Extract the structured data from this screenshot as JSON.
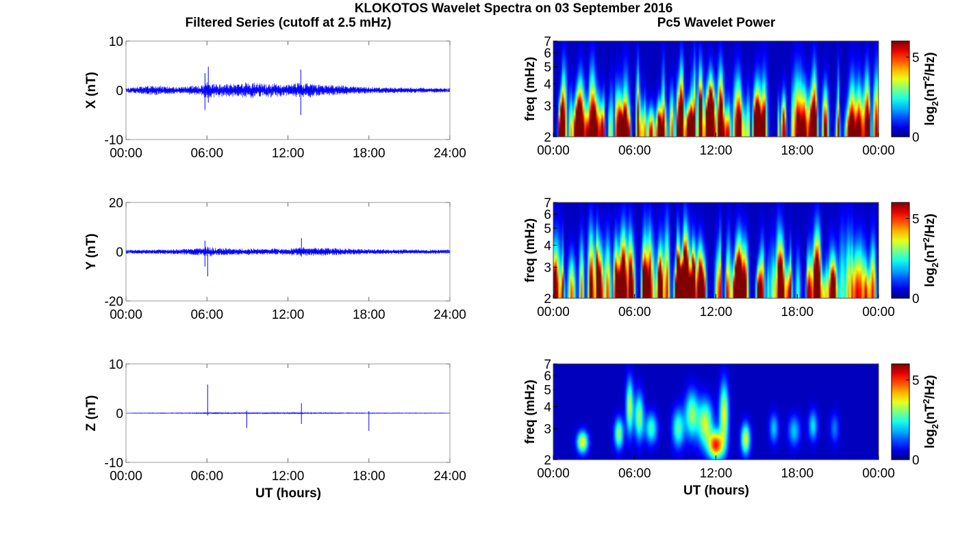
{
  "figure": {
    "title": "KLOKOTOS Wavelet Spectra on 03 September 2016",
    "left_column_title": "Filtered Series (cutoff at 2.5 mHz)",
    "right_column_title": "Pc5 Wavelet Power",
    "left_xlabel": "UT (hours)",
    "right_xlabel": "UT (hours)"
  },
  "chart_data": [
    {
      "type": "line",
      "panel": "filtered-x",
      "title": "",
      "xlabel": "",
      "ylabel": "X (nT)",
      "series_color": "#0000ff",
      "x_range_hours": [
        0,
        24
      ],
      "ylim": [
        -10,
        10
      ],
      "xticks": [
        "00:00",
        "06:00",
        "12:00",
        "18:00",
        "24:00"
      ],
      "yticks": [
        "10",
        "0",
        "-10"
      ],
      "grid": false,
      "base_amplitude": 0.5,
      "envelope": [
        [
          0,
          0.5
        ],
        [
          2,
          0.9
        ],
        [
          4,
          0.6
        ],
        [
          5.5,
          1.0
        ],
        [
          6,
          1.5
        ],
        [
          7,
          1.2
        ],
        [
          8,
          1.2
        ],
        [
          9,
          1.5
        ],
        [
          10,
          1.3
        ],
        [
          11,
          1.3
        ],
        [
          12,
          1.1
        ],
        [
          13,
          1.4
        ],
        [
          15,
          1.0
        ],
        [
          18,
          0.6
        ],
        [
          24,
          0.4
        ]
      ],
      "spikes": [
        {
          "x": 5.85,
          "min": -4.0,
          "max": 3.5
        },
        {
          "x": 6.1,
          "min": -2.5,
          "max": 4.8
        },
        {
          "x": 12.95,
          "min": -5.0,
          "max": 4.2
        }
      ]
    },
    {
      "type": "line",
      "panel": "filtered-y",
      "title": "",
      "xlabel": "",
      "ylabel": "Y (nT)",
      "series_color": "#0000ff",
      "x_range_hours": [
        0,
        24
      ],
      "ylim": [
        -20,
        20
      ],
      "xticks": [
        "00:00",
        "06:00",
        "12:00",
        "18:00",
        "24:00"
      ],
      "yticks": [
        "20",
        "0",
        "-20"
      ],
      "grid": false,
      "base_amplitude": 0.6,
      "envelope": [
        [
          0,
          0.6
        ],
        [
          4,
          0.8
        ],
        [
          5.5,
          1.2
        ],
        [
          6,
          1.5
        ],
        [
          8,
          1.0
        ],
        [
          12,
          1.0
        ],
        [
          13,
          1.4
        ],
        [
          18,
          0.8
        ],
        [
          24,
          0.6
        ]
      ],
      "spikes": [
        {
          "x": 5.85,
          "min": -6.0,
          "max": 4.5
        },
        {
          "x": 6.05,
          "min": -10.0,
          "max": 2.0
        },
        {
          "x": 13.0,
          "min": -2.0,
          "max": 5.5
        }
      ]
    },
    {
      "type": "line",
      "panel": "filtered-z",
      "title": "",
      "xlabel": "UT (hours)",
      "ylabel": "Z (nT)",
      "series_color": "#0000ff",
      "x_range_hours": [
        0,
        24
      ],
      "ylim": [
        -10,
        10
      ],
      "xticks": [
        "00:00",
        "06:00",
        "12:00",
        "18:00",
        "24:00"
      ],
      "yticks": [
        "10",
        "0",
        "-10"
      ],
      "grid": false,
      "base_amplitude": 0.15,
      "envelope": [
        [
          0,
          0.15
        ],
        [
          5,
          0.25
        ],
        [
          6,
          0.4
        ],
        [
          9,
          0.35
        ],
        [
          13,
          0.4
        ],
        [
          16,
          0.25
        ],
        [
          24,
          0.15
        ]
      ],
      "spikes": [
        {
          "x": 6.05,
          "min": -0.5,
          "max": 5.8
        },
        {
          "x": 8.95,
          "min": -3.0,
          "max": 0.5
        },
        {
          "x": 13.0,
          "min": -2.2,
          "max": 2.0
        },
        {
          "x": 18.0,
          "min": -3.6,
          "max": 0.4
        }
      ]
    },
    {
      "type": "heatmap",
      "panel": "wavelet-x",
      "title": "",
      "xlabel": "",
      "ylabel": "freq (mHz)",
      "x_range_hours": [
        0,
        24
      ],
      "ylim_mhz": [
        2,
        7
      ],
      "log_y": true,
      "xticks": [
        "00:00",
        "06:00",
        "12:00",
        "18:00",
        "00:00"
      ],
      "yticks": [
        "7",
        "6",
        "5",
        "4",
        "3",
        "2"
      ],
      "colorbar": {
        "label_base": "log",
        "label_sub": "2",
        "label_unit_open": "(nT",
        "label_sup": "2",
        "label_unit_close": "/Hz)",
        "ticks": [
          "5",
          "0"
        ],
        "range": [
          0,
          6
        ],
        "colormap": "jet"
      },
      "intensity_profile": [
        [
          0,
          0.85
        ],
        [
          3,
          0.95
        ],
        [
          5,
          0.8
        ],
        [
          7,
          0.95
        ],
        [
          9,
          1.0
        ],
        [
          12,
          1.0
        ],
        [
          14,
          0.75
        ],
        [
          18,
          0.7
        ],
        [
          21,
          0.7
        ],
        [
          24,
          0.6
        ]
      ],
      "freq_reach": 0.55
    },
    {
      "type": "heatmap",
      "panel": "wavelet-y",
      "title": "",
      "xlabel": "",
      "ylabel": "freq (mHz)",
      "x_range_hours": [
        0,
        24
      ],
      "ylim_mhz": [
        2,
        7
      ],
      "log_y": true,
      "xticks": [
        "00:00",
        "06:00",
        "12:00",
        "18:00",
        "00:00"
      ],
      "yticks": [
        "7",
        "6",
        "5",
        "4",
        "3",
        "2"
      ],
      "colorbar": {
        "label_base": "log",
        "label_sub": "2",
        "label_unit_open": "(nT",
        "label_sup": "2",
        "label_unit_close": "/Hz)",
        "ticks": [
          "5",
          "0"
        ],
        "range": [
          0,
          6
        ],
        "colormap": "jet"
      },
      "intensity_profile": [
        [
          0,
          0.75
        ],
        [
          3,
          0.85
        ],
        [
          5,
          0.95
        ],
        [
          8,
          0.9
        ],
        [
          10,
          1.0
        ],
        [
          12.5,
          1.0
        ],
        [
          14,
          0.75
        ],
        [
          17,
          0.65
        ],
        [
          20,
          0.6
        ],
        [
          24,
          0.55
        ]
      ],
      "freq_reach": 0.55
    },
    {
      "type": "heatmap",
      "panel": "wavelet-z",
      "title": "",
      "xlabel": "UT (hours)",
      "ylabel": "freq (mHz)",
      "x_range_hours": [
        0,
        24
      ],
      "ylim_mhz": [
        2,
        7
      ],
      "log_y": true,
      "xticks": [
        "00:00",
        "06:00",
        "12:00",
        "18:00",
        "00:00"
      ],
      "yticks": [
        "7",
        "6",
        "5",
        "4",
        "3",
        "2"
      ],
      "colorbar": {
        "label_base": "log",
        "label_sub": "2",
        "label_unit_open": "(nT",
        "label_sup": "2",
        "label_unit_close": "/Hz)",
        "ticks": [
          "5",
          "0"
        ],
        "range": [
          0,
          6
        ],
        "colormap": "jet"
      },
      "blobs": [
        {
          "x": 2.1,
          "f": 2.5,
          "amp": 0.62,
          "tw": 0.18,
          "fw": 0.14
        },
        {
          "x": 4.8,
          "f": 2.8,
          "amp": 0.5,
          "tw": 0.15,
          "fw": 0.2
        },
        {
          "x": 5.6,
          "f": 4.0,
          "amp": 0.55,
          "tw": 0.12,
          "fw": 0.35
        },
        {
          "x": 6.3,
          "f": 3.5,
          "amp": 0.5,
          "tw": 0.15,
          "fw": 0.3
        },
        {
          "x": 7.2,
          "f": 3.0,
          "amp": 0.4,
          "tw": 0.2,
          "fw": 0.2
        },
        {
          "x": 9.2,
          "f": 3.0,
          "amp": 0.42,
          "tw": 0.2,
          "fw": 0.25
        },
        {
          "x": 10.2,
          "f": 3.6,
          "amp": 0.48,
          "tw": 0.22,
          "fw": 0.3
        },
        {
          "x": 11.2,
          "f": 3.2,
          "amp": 0.55,
          "tw": 0.25,
          "fw": 0.3
        },
        {
          "x": 12.0,
          "f": 2.4,
          "amp": 0.82,
          "tw": 0.25,
          "fw": 0.18
        },
        {
          "x": 12.6,
          "f": 3.6,
          "amp": 0.6,
          "tw": 0.15,
          "fw": 0.4
        },
        {
          "x": 14.2,
          "f": 2.6,
          "amp": 0.58,
          "tw": 0.15,
          "fw": 0.2
        },
        {
          "x": 16.3,
          "f": 3.0,
          "amp": 0.28,
          "tw": 0.15,
          "fw": 0.2
        },
        {
          "x": 17.8,
          "f": 2.9,
          "amp": 0.28,
          "tw": 0.2,
          "fw": 0.2
        },
        {
          "x": 19.2,
          "f": 3.1,
          "amp": 0.32,
          "tw": 0.15,
          "fw": 0.2
        },
        {
          "x": 20.8,
          "f": 3.0,
          "amp": 0.2,
          "tw": 0.15,
          "fw": 0.2
        }
      ]
    }
  ]
}
